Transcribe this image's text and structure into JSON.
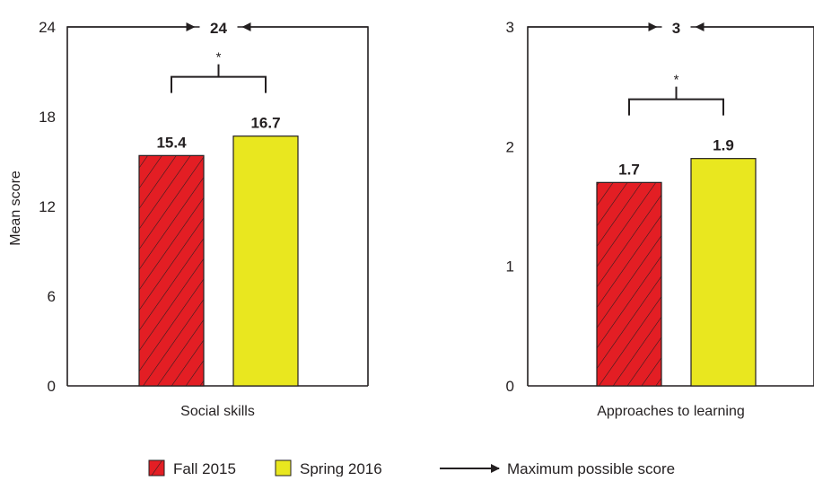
{
  "chart_data": [
    {
      "type": "bar",
      "ylabel": "Mean score",
      "ylim": [
        0,
        24
      ],
      "yticks": [
        "0",
        "6",
        "12",
        "18",
        "24"
      ],
      "categories": [
        "Social skills"
      ],
      "series": [
        {
          "name": "Fall 2015",
          "values": [
            15.4
          ],
          "labels": [
            "15.4"
          ]
        },
        {
          "name": "Spring 2016",
          "values": [
            16.7
          ],
          "labels": [
            "16.7"
          ]
        }
      ],
      "max_score": 24,
      "max_label": "24",
      "significance": "*"
    },
    {
      "type": "bar",
      "ylim": [
        0,
        3
      ],
      "yticks": [
        "0",
        "1",
        "2",
        "3"
      ],
      "categories": [
        "Approaches to learning"
      ],
      "series": [
        {
          "name": "Fall 2015",
          "values": [
            1.7
          ],
          "labels": [
            "1.7"
          ]
        },
        {
          "name": "Spring 2016",
          "values": [
            1.9
          ],
          "labels": [
            "1.9"
          ]
        }
      ],
      "max_score": 3,
      "max_label": "3",
      "significance": "*"
    }
  ],
  "legend": {
    "fall": "Fall 2015",
    "spring": "Spring 2016",
    "max": "Maximum possible score"
  },
  "colors": {
    "fall": "#e31e24",
    "spring": "#e9e71f",
    "line": "#231f20"
  }
}
